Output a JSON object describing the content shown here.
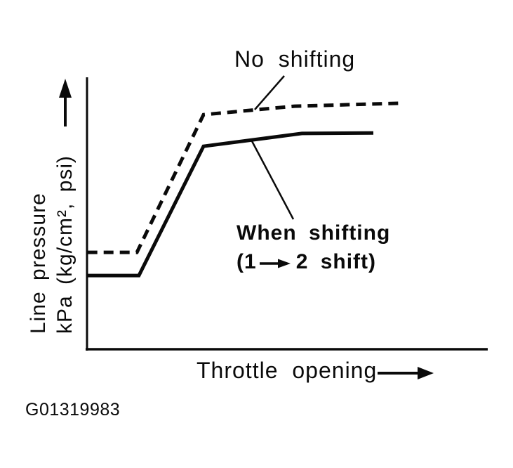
{
  "figure": {
    "code": "G01319983",
    "colors": {
      "ink": "#0a0a0a",
      "background": "#ffffff"
    },
    "y_axis": {
      "label_line1": "Line pressure",
      "label_line2": "kPa (kg/cm², psi)",
      "arrow_direction": "up"
    },
    "x_axis": {
      "label": "Throttle opening",
      "arrow_direction": "right"
    },
    "annotations": {
      "no_shifting": {
        "label": "No shifting"
      },
      "when_shifting": {
        "label_line1": "When shifting",
        "label_line2_prefix": "(1",
        "label_line2_suffix": "2 shift)",
        "arrow_direction": "right"
      }
    }
  },
  "chart_data": {
    "type": "line",
    "title": "",
    "xlabel": "Throttle opening",
    "ylabel": "Line pressure kPa (kg/cm², psi)",
    "grid": false,
    "axis_ticks": "none (qualitative diagram)",
    "x_range_percent": [
      0,
      100
    ],
    "y_range_percent": [
      0,
      100
    ],
    "legend_position": "inline annotations with pointer lines",
    "series": [
      {
        "name": "No shifting",
        "line_style": "dashed",
        "points_percent": [
          [
            0.3,
            35.8
          ],
          [
            12.6,
            35.8
          ],
          [
            29.2,
            86.3
          ],
          [
            51.9,
            89.4
          ],
          [
            78.5,
            90.5
          ]
        ]
      },
      {
        "name": "When shifting (1 → 2 shift)",
        "line_style": "solid",
        "points_percent": [
          [
            0.3,
            27.3
          ],
          [
            13.1,
            27.3
          ],
          [
            29.2,
            74.7
          ],
          [
            53.7,
            79.4
          ],
          [
            71.5,
            79.6
          ]
        ]
      }
    ]
  }
}
